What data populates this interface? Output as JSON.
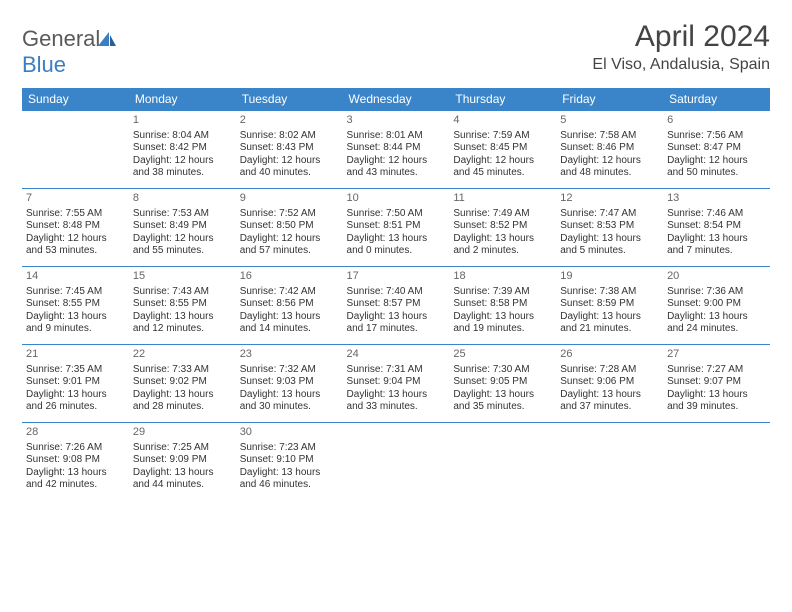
{
  "header": {
    "logo_general": "General",
    "logo_blue": "Blue",
    "month_title": "April 2024",
    "location": "El Viso, Andalusia, Spain"
  },
  "colors": {
    "header_bg": "#3a85c9",
    "header_text": "#ffffff",
    "border": "#3a85c9",
    "text": "#333333",
    "logo_gray": "#5a5a5a",
    "logo_blue": "#3a7fc4"
  },
  "daynames": [
    "Sunday",
    "Monday",
    "Tuesday",
    "Wednesday",
    "Thursday",
    "Friday",
    "Saturday"
  ],
  "weeks": [
    [
      null,
      {
        "n": "1",
        "sr": "Sunrise: 8:04 AM",
        "ss": "Sunset: 8:42 PM",
        "d1": "Daylight: 12 hours",
        "d2": "and 38 minutes."
      },
      {
        "n": "2",
        "sr": "Sunrise: 8:02 AM",
        "ss": "Sunset: 8:43 PM",
        "d1": "Daylight: 12 hours",
        "d2": "and 40 minutes."
      },
      {
        "n": "3",
        "sr": "Sunrise: 8:01 AM",
        "ss": "Sunset: 8:44 PM",
        "d1": "Daylight: 12 hours",
        "d2": "and 43 minutes."
      },
      {
        "n": "4",
        "sr": "Sunrise: 7:59 AM",
        "ss": "Sunset: 8:45 PM",
        "d1": "Daylight: 12 hours",
        "d2": "and 45 minutes."
      },
      {
        "n": "5",
        "sr": "Sunrise: 7:58 AM",
        "ss": "Sunset: 8:46 PM",
        "d1": "Daylight: 12 hours",
        "d2": "and 48 minutes."
      },
      {
        "n": "6",
        "sr": "Sunrise: 7:56 AM",
        "ss": "Sunset: 8:47 PM",
        "d1": "Daylight: 12 hours",
        "d2": "and 50 minutes."
      }
    ],
    [
      {
        "n": "7",
        "sr": "Sunrise: 7:55 AM",
        "ss": "Sunset: 8:48 PM",
        "d1": "Daylight: 12 hours",
        "d2": "and 53 minutes."
      },
      {
        "n": "8",
        "sr": "Sunrise: 7:53 AM",
        "ss": "Sunset: 8:49 PM",
        "d1": "Daylight: 12 hours",
        "d2": "and 55 minutes."
      },
      {
        "n": "9",
        "sr": "Sunrise: 7:52 AM",
        "ss": "Sunset: 8:50 PM",
        "d1": "Daylight: 12 hours",
        "d2": "and 57 minutes."
      },
      {
        "n": "10",
        "sr": "Sunrise: 7:50 AM",
        "ss": "Sunset: 8:51 PM",
        "d1": "Daylight: 13 hours",
        "d2": "and 0 minutes."
      },
      {
        "n": "11",
        "sr": "Sunrise: 7:49 AM",
        "ss": "Sunset: 8:52 PM",
        "d1": "Daylight: 13 hours",
        "d2": "and 2 minutes."
      },
      {
        "n": "12",
        "sr": "Sunrise: 7:47 AM",
        "ss": "Sunset: 8:53 PM",
        "d1": "Daylight: 13 hours",
        "d2": "and 5 minutes."
      },
      {
        "n": "13",
        "sr": "Sunrise: 7:46 AM",
        "ss": "Sunset: 8:54 PM",
        "d1": "Daylight: 13 hours",
        "d2": "and 7 minutes."
      }
    ],
    [
      {
        "n": "14",
        "sr": "Sunrise: 7:45 AM",
        "ss": "Sunset: 8:55 PM",
        "d1": "Daylight: 13 hours",
        "d2": "and 9 minutes."
      },
      {
        "n": "15",
        "sr": "Sunrise: 7:43 AM",
        "ss": "Sunset: 8:55 PM",
        "d1": "Daylight: 13 hours",
        "d2": "and 12 minutes."
      },
      {
        "n": "16",
        "sr": "Sunrise: 7:42 AM",
        "ss": "Sunset: 8:56 PM",
        "d1": "Daylight: 13 hours",
        "d2": "and 14 minutes."
      },
      {
        "n": "17",
        "sr": "Sunrise: 7:40 AM",
        "ss": "Sunset: 8:57 PM",
        "d1": "Daylight: 13 hours",
        "d2": "and 17 minutes."
      },
      {
        "n": "18",
        "sr": "Sunrise: 7:39 AM",
        "ss": "Sunset: 8:58 PM",
        "d1": "Daylight: 13 hours",
        "d2": "and 19 minutes."
      },
      {
        "n": "19",
        "sr": "Sunrise: 7:38 AM",
        "ss": "Sunset: 8:59 PM",
        "d1": "Daylight: 13 hours",
        "d2": "and 21 minutes."
      },
      {
        "n": "20",
        "sr": "Sunrise: 7:36 AM",
        "ss": "Sunset: 9:00 PM",
        "d1": "Daylight: 13 hours",
        "d2": "and 24 minutes."
      }
    ],
    [
      {
        "n": "21",
        "sr": "Sunrise: 7:35 AM",
        "ss": "Sunset: 9:01 PM",
        "d1": "Daylight: 13 hours",
        "d2": "and 26 minutes."
      },
      {
        "n": "22",
        "sr": "Sunrise: 7:33 AM",
        "ss": "Sunset: 9:02 PM",
        "d1": "Daylight: 13 hours",
        "d2": "and 28 minutes."
      },
      {
        "n": "23",
        "sr": "Sunrise: 7:32 AM",
        "ss": "Sunset: 9:03 PM",
        "d1": "Daylight: 13 hours",
        "d2": "and 30 minutes."
      },
      {
        "n": "24",
        "sr": "Sunrise: 7:31 AM",
        "ss": "Sunset: 9:04 PM",
        "d1": "Daylight: 13 hours",
        "d2": "and 33 minutes."
      },
      {
        "n": "25",
        "sr": "Sunrise: 7:30 AM",
        "ss": "Sunset: 9:05 PM",
        "d1": "Daylight: 13 hours",
        "d2": "and 35 minutes."
      },
      {
        "n": "26",
        "sr": "Sunrise: 7:28 AM",
        "ss": "Sunset: 9:06 PM",
        "d1": "Daylight: 13 hours",
        "d2": "and 37 minutes."
      },
      {
        "n": "27",
        "sr": "Sunrise: 7:27 AM",
        "ss": "Sunset: 9:07 PM",
        "d1": "Daylight: 13 hours",
        "d2": "and 39 minutes."
      }
    ],
    [
      {
        "n": "28",
        "sr": "Sunrise: 7:26 AM",
        "ss": "Sunset: 9:08 PM",
        "d1": "Daylight: 13 hours",
        "d2": "and 42 minutes."
      },
      {
        "n": "29",
        "sr": "Sunrise: 7:25 AM",
        "ss": "Sunset: 9:09 PM",
        "d1": "Daylight: 13 hours",
        "d2": "and 44 minutes."
      },
      {
        "n": "30",
        "sr": "Sunrise: 7:23 AM",
        "ss": "Sunset: 9:10 PM",
        "d1": "Daylight: 13 hours",
        "d2": "and 46 minutes."
      },
      null,
      null,
      null,
      null
    ]
  ]
}
